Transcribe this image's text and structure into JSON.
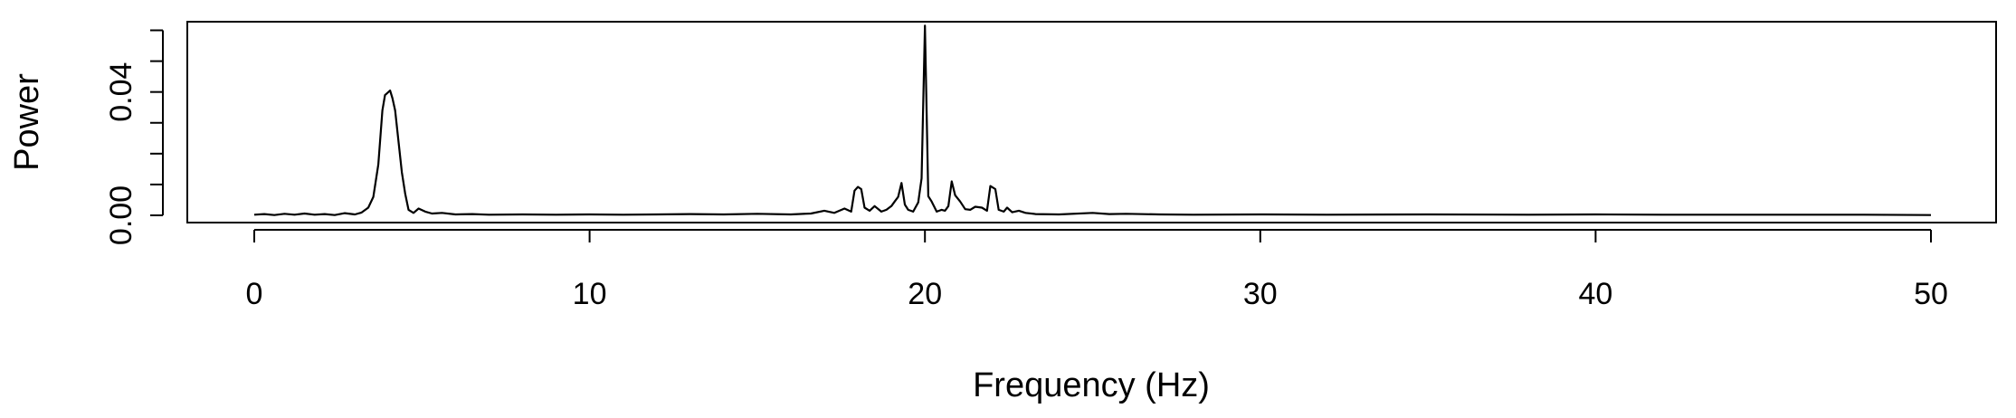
{
  "chart_data": {
    "type": "line",
    "title": "",
    "xlabel": "Frequency (Hz)",
    "ylabel": "Power",
    "xlim": [
      0,
      50
    ],
    "ylim": [
      0,
      0.062
    ],
    "x_ticks": [
      0,
      10,
      20,
      30,
      40,
      50
    ],
    "x_tick_labels": [
      "0",
      "10",
      "20",
      "30",
      "40",
      "50"
    ],
    "y_ticks": [
      0,
      0.01,
      0.02,
      0.03,
      0.04,
      0.05,
      0.06
    ],
    "y_tick_labels": [
      "0.00",
      "",
      "",
      "",
      "0.04",
      "",
      ""
    ],
    "grid": false,
    "legend": "none",
    "line_color": "#000000",
    "series": [
      {
        "points": [
          [
            0.0,
            0.0002
          ],
          [
            0.3,
            0.0004
          ],
          [
            0.6,
            0.0001
          ],
          [
            0.9,
            0.0005
          ],
          [
            1.2,
            0.0002
          ],
          [
            1.5,
            0.0006
          ],
          [
            1.8,
            0.0002
          ],
          [
            2.1,
            0.0004
          ],
          [
            2.4,
            0.0001
          ],
          [
            2.7,
            0.0007
          ],
          [
            3.0,
            0.0003
          ],
          [
            3.2,
            0.0009
          ],
          [
            3.4,
            0.0025
          ],
          [
            3.55,
            0.006
          ],
          [
            3.7,
            0.0165
          ],
          [
            3.82,
            0.034
          ],
          [
            3.9,
            0.039
          ],
          [
            3.95,
            0.0395
          ],
          [
            4.05,
            0.0405
          ],
          [
            4.12,
            0.038
          ],
          [
            4.2,
            0.034
          ],
          [
            4.3,
            0.024
          ],
          [
            4.4,
            0.014
          ],
          [
            4.5,
            0.007
          ],
          [
            4.6,
            0.0018
          ],
          [
            4.75,
            0.0008
          ],
          [
            4.9,
            0.0022
          ],
          [
            5.1,
            0.0012
          ],
          [
            5.3,
            0.0006
          ],
          [
            5.6,
            0.0008
          ],
          [
            6.0,
            0.0003
          ],
          [
            6.5,
            0.0004
          ],
          [
            7.0,
            0.0002
          ],
          [
            8.0,
            0.0003
          ],
          [
            9.0,
            0.0002
          ],
          [
            10.0,
            0.0003
          ],
          [
            11.0,
            0.0002
          ],
          [
            12.0,
            0.0003
          ],
          [
            13.0,
            0.0004
          ],
          [
            14.0,
            0.0003
          ],
          [
            15.0,
            0.0005
          ],
          [
            16.0,
            0.0003
          ],
          [
            16.6,
            0.0006
          ],
          [
            17.0,
            0.0015
          ],
          [
            17.3,
            0.0008
          ],
          [
            17.6,
            0.0022
          ],
          [
            17.8,
            0.0012
          ],
          [
            17.9,
            0.008
          ],
          [
            18.0,
            0.0092
          ],
          [
            18.1,
            0.0085
          ],
          [
            18.2,
            0.0025
          ],
          [
            18.35,
            0.0015
          ],
          [
            18.5,
            0.003
          ],
          [
            18.7,
            0.0012
          ],
          [
            18.85,
            0.0018
          ],
          [
            19.0,
            0.003
          ],
          [
            19.1,
            0.0045
          ],
          [
            19.2,
            0.006
          ],
          [
            19.3,
            0.0105
          ],
          [
            19.4,
            0.0035
          ],
          [
            19.5,
            0.0018
          ],
          [
            19.65,
            0.0012
          ],
          [
            19.8,
            0.0042
          ],
          [
            19.9,
            0.012
          ],
          [
            20.0,
            0.0615
          ],
          [
            20.1,
            0.0062
          ],
          [
            20.2,
            0.0045
          ],
          [
            20.35,
            0.0012
          ],
          [
            20.5,
            0.0018
          ],
          [
            20.6,
            0.0015
          ],
          [
            20.7,
            0.003
          ],
          [
            20.8,
            0.011
          ],
          [
            20.9,
            0.0065
          ],
          [
            21.05,
            0.0045
          ],
          [
            21.2,
            0.002
          ],
          [
            21.35,
            0.0018
          ],
          [
            21.5,
            0.0028
          ],
          [
            21.7,
            0.0025
          ],
          [
            21.85,
            0.0015
          ],
          [
            21.95,
            0.0095
          ],
          [
            22.1,
            0.0085
          ],
          [
            22.2,
            0.0018
          ],
          [
            22.35,
            0.0012
          ],
          [
            22.45,
            0.0025
          ],
          [
            22.6,
            0.001
          ],
          [
            22.8,
            0.0015
          ],
          [
            23.0,
            0.0008
          ],
          [
            23.3,
            0.0004
          ],
          [
            24.0,
            0.0003
          ],
          [
            25.0,
            0.0008
          ],
          [
            25.5,
            0.0004
          ],
          [
            26.0,
            0.0005
          ],
          [
            27.0,
            0.0003
          ],
          [
            28.0,
            0.0002
          ],
          [
            30.0,
            0.0003
          ],
          [
            32.0,
            0.0002
          ],
          [
            35.0,
            0.0003
          ],
          [
            38.0,
            0.0002
          ],
          [
            40.0,
            0.0003
          ],
          [
            42.0,
            0.0002
          ],
          [
            45.0,
            0.0002
          ],
          [
            48.0,
            0.0002
          ],
          [
            50.0,
            0.0001
          ]
        ]
      }
    ]
  }
}
